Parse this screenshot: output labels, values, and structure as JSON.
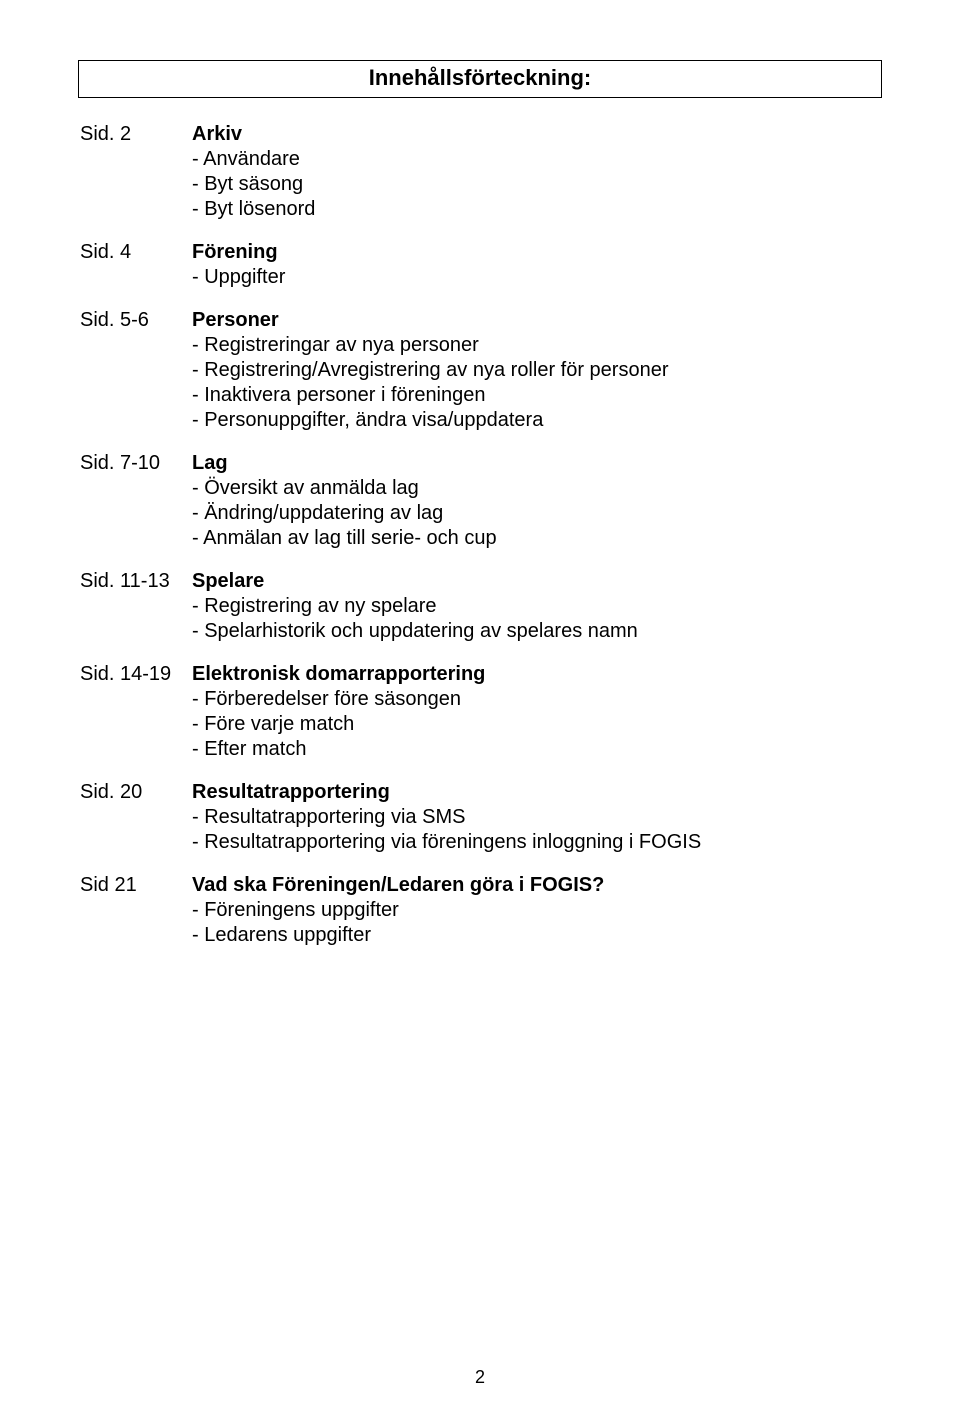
{
  "title": "Innehållsförteckning:",
  "sections": [
    {
      "page": "Sid. 2",
      "heading": "Arkiv",
      "items": [
        "- Användare",
        "- Byt säsong",
        "- Byt lösenord"
      ]
    },
    {
      "page": "Sid. 4",
      "heading": "Förening",
      "items": [
        "- Uppgifter"
      ]
    },
    {
      "page": "Sid. 5-6",
      "heading": "Personer",
      "items": [
        "- Registreringar av nya personer",
        "- Registrering/Avregistrering av nya roller för personer",
        "- Inaktivera personer i föreningen",
        "- Personuppgifter, ändra visa/uppdatera"
      ]
    },
    {
      "page": "Sid. 7-10",
      "heading": "Lag",
      "items": [
        "- Översikt av anmälda lag",
        "- Ändring/uppdatering av lag",
        "- Anmälan av lag till serie- och cup"
      ]
    },
    {
      "page": "Sid. 11-13",
      "heading": "Spelare",
      "items": [
        "- Registrering av ny spelare",
        "- Spelarhistorik och uppdatering av spelares namn"
      ]
    },
    {
      "page": "Sid. 14-19",
      "heading": "Elektronisk domarrapportering",
      "items": [
        "- Förberedelser före säsongen",
        "- Före varje match",
        "- Efter match"
      ]
    },
    {
      "page": "Sid. 20",
      "heading": "Resultatrapportering",
      "items": [
        "- Resultatrapportering via SMS",
        "- Resultatrapportering via föreningens inloggning i FOGIS"
      ]
    },
    {
      "page": "Sid 21",
      "heading": "Vad ska Föreningen/Ledaren göra i FOGIS?",
      "items": [
        "- Föreningens uppgifter",
        "- Ledarens uppgifter"
      ]
    }
  ],
  "page_number": "2"
}
